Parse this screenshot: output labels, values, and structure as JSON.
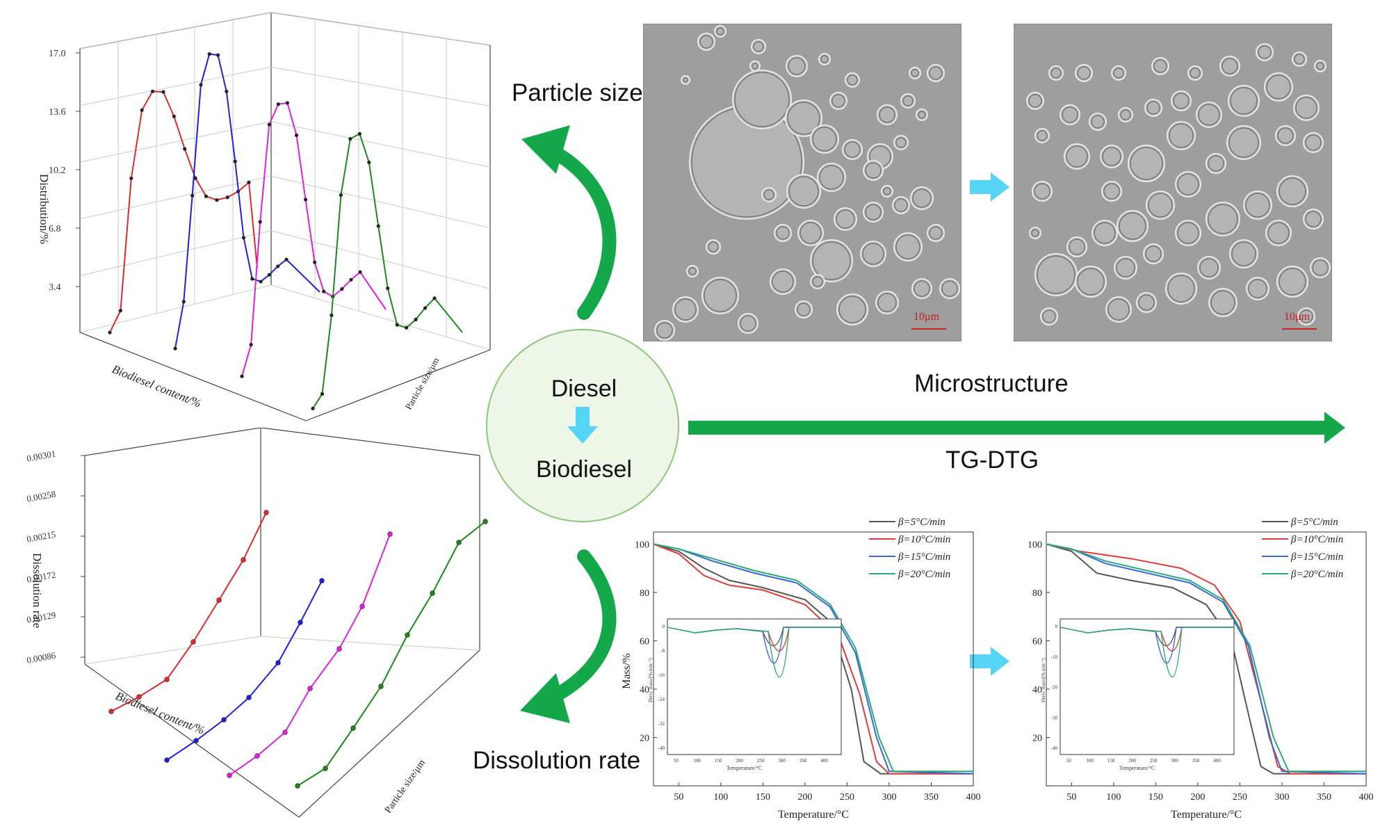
{
  "center": {
    "line1": "Diesel",
    "line2": "Biodiesel"
  },
  "labels": {
    "particle_size": "Particle size",
    "dissolution_rate": "Dissolution rate",
    "microstructure": "Microstructure",
    "tg_dtg": "TG-DTG"
  },
  "colors": {
    "red": "#e0282e",
    "blue": "#1f1fe0",
    "magenta": "#e020e0",
    "green": "#1a8a1a",
    "arrow_green": "#14a84a",
    "arrow_cyan": "#55d4f5",
    "circle_fill": "#eef6e8",
    "circle_edge": "#8cc77a"
  },
  "micrographs": [
    {
      "scale_label": "10μm"
    },
    {
      "scale_label": "10μm"
    }
  ],
  "chart_data": [
    {
      "type": "line",
      "title": "",
      "ylabel": "Distribution/%",
      "xlabel": "Biodiesel content/%",
      "zlabel": "Particle size/μm",
      "y_ticks": [
        "3.4",
        "6.8",
        "10.2",
        "13.6",
        "17.0"
      ],
      "ylim": [
        0,
        17.0
      ],
      "series": [
        {
          "color": "red",
          "values": [
            0.3,
            1.2,
            9.0,
            12.8,
            13.5,
            13.0,
            11.0,
            8.5,
            6.2,
            4.6,
            3.9,
            3.6,
            3.5,
            3.6
          ]
        },
        {
          "color": "blue",
          "values": [
            0.3,
            2.8,
            9.0,
            15.5,
            17.0,
            16.5,
            13.8,
            9.0,
            3.8,
            0.8,
            0.2,
            0.2,
            0.3,
            0.3
          ]
        },
        {
          "color": "magenta",
          "values": [
            0.3,
            1.8,
            9.0,
            14.6,
            15.4,
            15.0,
            12.5,
            8.0,
            3.6,
            1.3,
            0.5,
            0.5,
            0.6,
            0.6
          ]
        },
        {
          "color": "green",
          "values": [
            0.2,
            0.6,
            5.0,
            12.0,
            15.0,
            14.8,
            12.5,
            8.0,
            3.6,
            0.8,
            0.1,
            0.1,
            0.3,
            0.4
          ]
        }
      ]
    },
    {
      "type": "line",
      "title": "",
      "ylabel": "Dissolution rate",
      "xlabel": "Biodiesel content/%",
      "zlabel": "Particle size/μm",
      "y_ticks": [
        "0.00086",
        "0.00129",
        "0.00172",
        "0.00215",
        "0.00258",
        "0.00301"
      ],
      "ylim": [
        0.00086,
        0.00301
      ],
      "series": [
        {
          "color": "red",
          "values": [
            0.00091,
            0.001,
            0.00116,
            0.0015,
            0.00192,
            0.00228,
            0.00262
          ]
        },
        {
          "color": "blue",
          "values": [
            0.00062,
            0.00076,
            0.00092,
            0.00112,
            0.00138,
            0.00168,
            0.00198
          ]
        },
        {
          "color": "magenta",
          "values": [
            0.00065,
            0.00084,
            0.00108,
            0.0014,
            0.00168,
            0.002,
            0.00235
          ]
        },
        {
          "color": "green",
          "values": [
            0.00064,
            0.0008,
            0.00108,
            0.00144,
            0.00178,
            0.00216,
            0.00252,
            0.00268
          ]
        }
      ]
    },
    {
      "type": "line",
      "title": "",
      "xlabel": "Temperature/°C",
      "ylabel": "Mass/%",
      "x_ticks": [
        "50",
        "100",
        "150",
        "200",
        "250",
        "300",
        "350",
        "400"
      ],
      "y_ticks": [
        "20",
        "40",
        "60",
        "80",
        "100"
      ],
      "xlim": [
        20,
        400
      ],
      "ylim": [
        0,
        105
      ],
      "legend": [
        "β=5°C/min",
        "β=10°C/min",
        "β=15°C/min",
        "β=20°C/min"
      ],
      "legend_position": "top-right",
      "inset": {
        "xlabel": "Temperature/°C",
        "ylabel": "Deriv. mass/(% min⁻¹)",
        "x_ticks": [
          "50",
          "100",
          "150",
          "200",
          "250",
          "300",
          "350",
          "400"
        ],
        "y_ticks": [
          "0",
          "-8",
          "-16",
          "-24",
          "-32",
          "-40"
        ]
      },
      "series": [
        {
          "name": "β=5°C/min",
          "color": "#555555",
          "points": [
            [
              20,
              100
            ],
            [
              50,
              97
            ],
            [
              80,
              90
            ],
            [
              110,
              85
            ],
            [
              150,
              82
            ],
            [
              200,
              77
            ],
            [
              230,
              68
            ],
            [
              255,
              40
            ],
            [
              270,
              10
            ],
            [
              290,
              5
            ],
            [
              400,
              5
            ]
          ]
        },
        {
          "name": "β=10°C/min",
          "color": "#e03a3a",
          "points": [
            [
              20,
              100
            ],
            [
              50,
              96
            ],
            [
              80,
              87
            ],
            [
              110,
              83
            ],
            [
              150,
              81
            ],
            [
              200,
              75
            ],
            [
              240,
              62
            ],
            [
              265,
              38
            ],
            [
              285,
              10
            ],
            [
              300,
              5
            ],
            [
              400,
              5
            ]
          ]
        },
        {
          "name": "β=15°C/min",
          "color": "#3a66d8",
          "points": [
            [
              20,
              100
            ],
            [
              50,
              98
            ],
            [
              90,
              93
            ],
            [
              140,
              88
            ],
            [
              190,
              84
            ],
            [
              230,
              74
            ],
            [
              260,
              55
            ],
            [
              285,
              20
            ],
            [
              300,
              6
            ],
            [
              400,
              5
            ]
          ]
        },
        {
          "name": "β=20°C/min",
          "color": "#2aaa7a",
          "points": [
            [
              20,
              100
            ],
            [
              50,
              98
            ],
            [
              90,
              94
            ],
            [
              140,
              89
            ],
            [
              190,
              85
            ],
            [
              230,
              75
            ],
            [
              260,
              57
            ],
            [
              288,
              20
            ],
            [
              305,
              6
            ],
            [
              400,
              6
            ]
          ]
        }
      ]
    },
    {
      "type": "line",
      "title": "",
      "xlabel": "Temperature/°C",
      "ylabel": "",
      "x_ticks": [
        "50",
        "100",
        "150",
        "200",
        "250",
        "300",
        "350",
        "400"
      ],
      "y_ticks": [
        "20",
        "40",
        "60",
        "80",
        "100"
      ],
      "xlim": [
        20,
        400
      ],
      "ylim": [
        0,
        105
      ],
      "legend": [
        "β=5°C/min",
        "β=10°C/min",
        "β=15°C/min",
        "β=20°C/min"
      ],
      "legend_position": "top-right",
      "inset": {
        "xlabel": "Temperature/°C",
        "ylabel": "Deriv. mass/(% min⁻¹)",
        "x_ticks": [
          "50",
          "100",
          "150",
          "200",
          "250",
          "300",
          "350",
          "400"
        ],
        "y_ticks": [
          "0",
          "-10",
          "-20",
          "-30",
          "-40"
        ]
      },
      "series": [
        {
          "name": "β=5°C/min",
          "color": "#555555",
          "points": [
            [
              20,
              100
            ],
            [
              50,
              97
            ],
            [
              80,
              88
            ],
            [
              120,
              85
            ],
            [
              170,
              82
            ],
            [
              210,
              75
            ],
            [
              240,
              60
            ],
            [
              260,
              30
            ],
            [
              275,
              8
            ],
            [
              290,
              5
            ],
            [
              400,
              5
            ]
          ]
        },
        {
          "name": "β=10°C/min",
          "color": "#e03a3a",
          "points": [
            [
              20,
              100
            ],
            [
              60,
              97
            ],
            [
              120,
              94
            ],
            [
              180,
              90
            ],
            [
              220,
              83
            ],
            [
              250,
              68
            ],
            [
              275,
              35
            ],
            [
              295,
              8
            ],
            [
              310,
              5
            ],
            [
              400,
              5
            ]
          ]
        },
        {
          "name": "β=15°C/min",
          "color": "#3a66d8",
          "points": [
            [
              20,
              100
            ],
            [
              50,
              98
            ],
            [
              90,
              92
            ],
            [
              140,
              88
            ],
            [
              190,
              84
            ],
            [
              230,
              76
            ],
            [
              260,
              58
            ],
            [
              285,
              20
            ],
            [
              300,
              6
            ],
            [
              400,
              5
            ]
          ]
        },
        {
          "name": "β=20°C/min",
          "color": "#2aaa7a",
          "points": [
            [
              20,
              100
            ],
            [
              50,
              98
            ],
            [
              90,
              93
            ],
            [
              140,
              89
            ],
            [
              190,
              85
            ],
            [
              230,
              77
            ],
            [
              262,
              58
            ],
            [
              290,
              20
            ],
            [
              308,
              6
            ],
            [
              400,
              6
            ]
          ]
        }
      ]
    }
  ]
}
